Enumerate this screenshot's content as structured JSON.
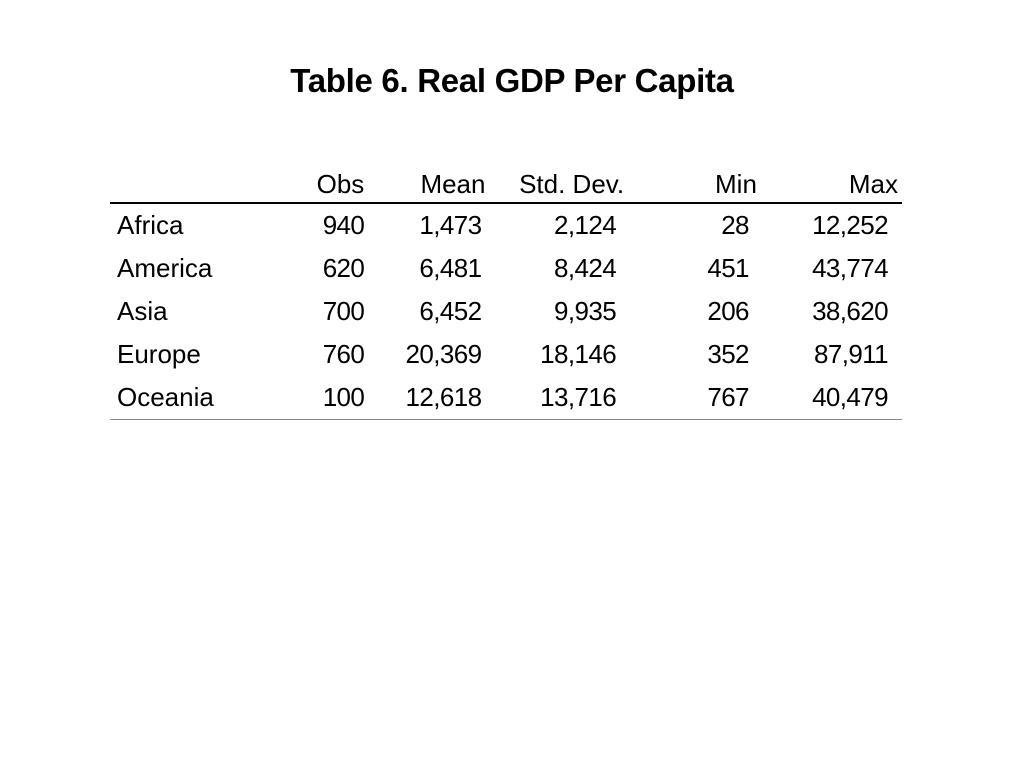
{
  "title": "Table 6. Real GDP Per Capita",
  "table": {
    "columns": [
      "",
      "Obs",
      "Mean",
      "Std. Dev.",
      "Min",
      "Max"
    ],
    "rows": [
      {
        "region": "Africa",
        "obs": "940",
        "mean": "1,473",
        "sd": "2,124",
        "min": "28",
        "max": "12,252"
      },
      {
        "region": "America",
        "obs": "620",
        "mean": "6,481",
        "sd": "8,424",
        "min": "451",
        "max": "43,774"
      },
      {
        "region": "Asia",
        "obs": "700",
        "mean": "6,452",
        "sd": "9,935",
        "min": "206",
        "max": "38,620"
      },
      {
        "region": "Europe",
        "obs": "760",
        "mean": "20,369",
        "sd": "18,146",
        "min": "352",
        "max": "87,911"
      },
      {
        "region": "Oceania",
        "obs": "100",
        "mean": "12,618",
        "sd": "13,716",
        "min": "767",
        "max": "40,479"
      }
    ]
  }
}
